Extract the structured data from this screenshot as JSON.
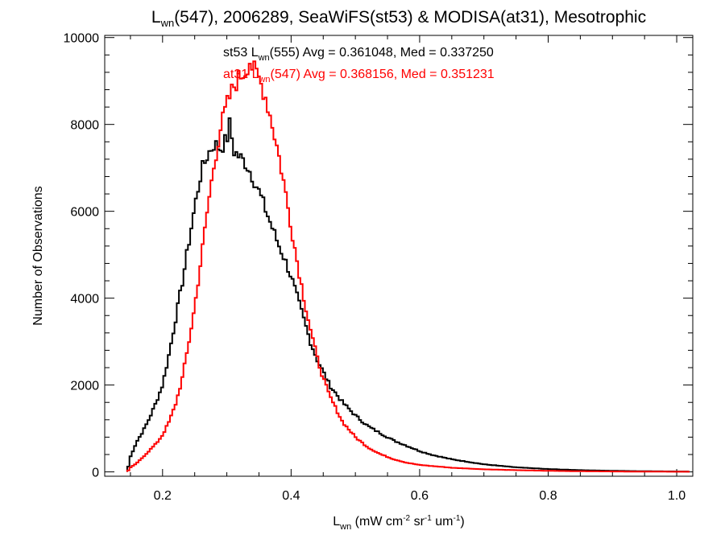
{
  "chart_data": {
    "type": "line",
    "title": {
      "main": "L",
      "sub": "wn",
      "rest": "(547), 2006289, SeaWiFS(st53) & MODISA(at31), Mesotrophic"
    },
    "xlabel": {
      "main": "L",
      "sub": "wn",
      "rest": " (mW cm",
      "sup1": "-2",
      "mid": " sr",
      "sup2": "-1",
      "mid2": " um",
      "sup3": "-1",
      "end": ")"
    },
    "ylabel": "Number of Observations",
    "xlim": [
      0.11,
      1.025
    ],
    "ylim": [
      -100,
      10050
    ],
    "x_ticks": [
      0.2,
      0.4,
      0.6,
      0.8,
      1.0
    ],
    "x_tick_labels": [
      "0.2",
      "0.4",
      "0.6",
      "0.8",
      "1.0"
    ],
    "y_ticks": [
      0,
      2000,
      4000,
      6000,
      8000,
      10000
    ],
    "y_tick_labels": [
      "0",
      "2000",
      "4000",
      "6000",
      "8000",
      "10000"
    ],
    "annotations": [
      {
        "series": "st53",
        "color": "#000000",
        "parts": {
          "a": "st53 L",
          "sub": "wn",
          "b": "(555) Avg = 0.361048, Med = 0.337250"
        }
      },
      {
        "series": "at31",
        "color": "#ff0000",
        "parts": {
          "a": "at31 L",
          "sub": "wn",
          "b": "(547) Avg = 0.368156, Med = 0.351231"
        }
      }
    ],
    "series": [
      {
        "name": "st53",
        "color": "#000000",
        "style": "step",
        "points": [
          [
            0.145,
            0
          ],
          [
            0.15,
            350
          ],
          [
            0.16,
            700
          ],
          [
            0.17,
            950
          ],
          [
            0.18,
            1250
          ],
          [
            0.19,
            1600
          ],
          [
            0.2,
            2000
          ],
          [
            0.21,
            2700
          ],
          [
            0.22,
            3500
          ],
          [
            0.23,
            4300
          ],
          [
            0.24,
            5200
          ],
          [
            0.25,
            6100
          ],
          [
            0.26,
            6900
          ],
          [
            0.27,
            7300
          ],
          [
            0.28,
            7550
          ],
          [
            0.29,
            7450
          ],
          [
            0.3,
            7650
          ],
          [
            0.305,
            8050
          ],
          [
            0.31,
            7400
          ],
          [
            0.32,
            7250
          ],
          [
            0.33,
            7100
          ],
          [
            0.34,
            6800
          ],
          [
            0.35,
            6450
          ],
          [
            0.36,
            6050
          ],
          [
            0.37,
            5650
          ],
          [
            0.38,
            5250
          ],
          [
            0.39,
            4900
          ],
          [
            0.4,
            4500
          ],
          [
            0.41,
            4000
          ],
          [
            0.42,
            3500
          ],
          [
            0.43,
            3000
          ],
          [
            0.44,
            2600
          ],
          [
            0.45,
            2300
          ],
          [
            0.46,
            2000
          ],
          [
            0.47,
            1800
          ],
          [
            0.48,
            1600
          ],
          [
            0.5,
            1300
          ],
          [
            0.52,
            1050
          ],
          [
            0.54,
            880
          ],
          [
            0.56,
            720
          ],
          [
            0.58,
            600
          ],
          [
            0.6,
            480
          ],
          [
            0.62,
            390
          ],
          [
            0.65,
            290
          ],
          [
            0.7,
            175
          ],
          [
            0.75,
            105
          ],
          [
            0.8,
            65
          ],
          [
            0.85,
            40
          ],
          [
            0.9,
            25
          ],
          [
            0.95,
            15
          ],
          [
            1.0,
            10
          ],
          [
            1.02,
            8
          ]
        ]
      },
      {
        "name": "at31",
        "color": "#ff0000",
        "style": "step",
        "points": [
          [
            0.145,
            0
          ],
          [
            0.15,
            100
          ],
          [
            0.16,
            200
          ],
          [
            0.17,
            350
          ],
          [
            0.18,
            500
          ],
          [
            0.19,
            650
          ],
          [
            0.2,
            850
          ],
          [
            0.21,
            1150
          ],
          [
            0.22,
            1550
          ],
          [
            0.23,
            2100
          ],
          [
            0.24,
            2900
          ],
          [
            0.25,
            3800
          ],
          [
            0.26,
            4900
          ],
          [
            0.27,
            6050
          ],
          [
            0.28,
            7050
          ],
          [
            0.29,
            7900
          ],
          [
            0.3,
            8450
          ],
          [
            0.31,
            8850
          ],
          [
            0.32,
            9100
          ],
          [
            0.33,
            9250
          ],
          [
            0.335,
            9500
          ],
          [
            0.34,
            9300
          ],
          [
            0.35,
            9050
          ],
          [
            0.36,
            8650
          ],
          [
            0.37,
            8050
          ],
          [
            0.38,
            7350
          ],
          [
            0.39,
            6550
          ],
          [
            0.4,
            5650
          ],
          [
            0.41,
            4800
          ],
          [
            0.42,
            4000
          ],
          [
            0.43,
            3300
          ],
          [
            0.44,
            2650
          ],
          [
            0.45,
            2150
          ],
          [
            0.46,
            1750
          ],
          [
            0.47,
            1450
          ],
          [
            0.48,
            1150
          ],
          [
            0.5,
            800
          ],
          [
            0.52,
            560
          ],
          [
            0.54,
            400
          ],
          [
            0.56,
            290
          ],
          [
            0.58,
            210
          ],
          [
            0.6,
            160
          ],
          [
            0.65,
            95
          ],
          [
            0.7,
            60
          ],
          [
            0.75,
            40
          ],
          [
            0.8,
            25
          ],
          [
            0.85,
            15
          ],
          [
            0.9,
            10
          ],
          [
            0.95,
            6
          ],
          [
            1.0,
            4
          ],
          [
            1.02,
            3
          ]
        ]
      }
    ]
  }
}
